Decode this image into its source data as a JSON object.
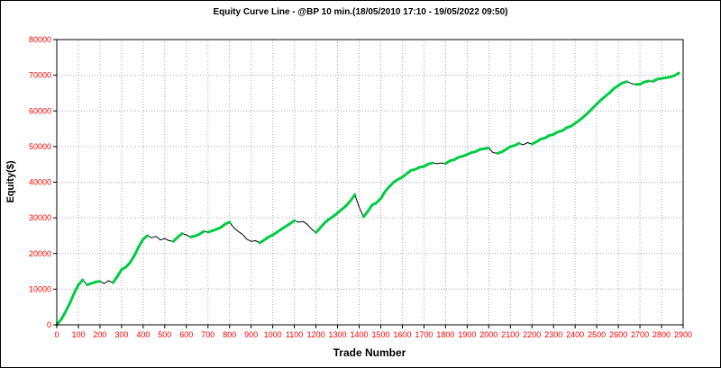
{
  "chart": {
    "title": "Equity Curve Line - @BP 10 min.(18/05/2010 17:10 - 19/05/2022 09:50)"
  },
  "chart_data": {
    "type": "line",
    "title": "Equity Curve Line - @BP 10 min.(18/05/2010 17:10 - 19/05/2022 09:50)",
    "xlabel": "Trade Number",
    "ylabel": "Equity($)",
    "xlim": [
      0,
      2900
    ],
    "ylim": [
      0,
      80000
    ],
    "x_tick_step": 100,
    "y_tick_step": 10000,
    "grid": true,
    "legend": "none",
    "colors": {
      "line": "#000000",
      "new_high_highlight": "#00cc44",
      "tick_label": "#ff0000",
      "grid": "#aaaaaa",
      "background": "#ffffff"
    },
    "series": [
      {
        "name": "equity",
        "points": [
          [
            0,
            0
          ],
          [
            20,
            1500
          ],
          [
            40,
            3600
          ],
          [
            60,
            6000
          ],
          [
            80,
            8800
          ],
          [
            100,
            11200
          ],
          [
            120,
            12600
          ],
          [
            140,
            11200
          ],
          [
            160,
            11600
          ],
          [
            180,
            12000
          ],
          [
            200,
            12200
          ],
          [
            220,
            11600
          ],
          [
            240,
            12400
          ],
          [
            260,
            11800
          ],
          [
            280,
            13500
          ],
          [
            300,
            15500
          ],
          [
            320,
            16200
          ],
          [
            340,
            17500
          ],
          [
            360,
            19500
          ],
          [
            380,
            22000
          ],
          [
            400,
            24000
          ],
          [
            420,
            25000
          ],
          [
            440,
            24400
          ],
          [
            460,
            24800
          ],
          [
            480,
            23800
          ],
          [
            500,
            24200
          ],
          [
            520,
            23600
          ],
          [
            540,
            23400
          ],
          [
            560,
            24600
          ],
          [
            580,
            25600
          ],
          [
            600,
            25200
          ],
          [
            620,
            24600
          ],
          [
            640,
            24900
          ],
          [
            660,
            25400
          ],
          [
            680,
            26200
          ],
          [
            700,
            26000
          ],
          [
            720,
            26400
          ],
          [
            740,
            26800
          ],
          [
            760,
            27300
          ],
          [
            780,
            28300
          ],
          [
            800,
            28800
          ],
          [
            820,
            27200
          ],
          [
            840,
            26200
          ],
          [
            860,
            25400
          ],
          [
            880,
            24000
          ],
          [
            900,
            23400
          ],
          [
            920,
            23600
          ],
          [
            940,
            23000
          ],
          [
            960,
            23800
          ],
          [
            980,
            24600
          ],
          [
            1000,
            25200
          ],
          [
            1020,
            26000
          ],
          [
            1040,
            26800
          ],
          [
            1060,
            27600
          ],
          [
            1080,
            28400
          ],
          [
            1100,
            29200
          ],
          [
            1120,
            28800
          ],
          [
            1140,
            29000
          ],
          [
            1160,
            28200
          ],
          [
            1180,
            26800
          ],
          [
            1200,
            25900
          ],
          [
            1220,
            27200
          ],
          [
            1240,
            28600
          ],
          [
            1260,
            29600
          ],
          [
            1280,
            30400
          ],
          [
            1300,
            31400
          ],
          [
            1320,
            32400
          ],
          [
            1340,
            33400
          ],
          [
            1360,
            34800
          ],
          [
            1380,
            36500
          ],
          [
            1400,
            33000
          ],
          [
            1420,
            30300
          ],
          [
            1440,
            31800
          ],
          [
            1460,
            33600
          ],
          [
            1480,
            34200
          ],
          [
            1500,
            35400
          ],
          [
            1520,
            37400
          ],
          [
            1540,
            38800
          ],
          [
            1560,
            40000
          ],
          [
            1580,
            40800
          ],
          [
            1600,
            41400
          ],
          [
            1620,
            42400
          ],
          [
            1640,
            43300
          ],
          [
            1660,
            43600
          ],
          [
            1680,
            44200
          ],
          [
            1700,
            44400
          ],
          [
            1720,
            45100
          ],
          [
            1740,
            45400
          ],
          [
            1760,
            45200
          ],
          [
            1780,
            45400
          ],
          [
            1800,
            45200
          ],
          [
            1820,
            46000
          ],
          [
            1840,
            46300
          ],
          [
            1860,
            47000
          ],
          [
            1880,
            47300
          ],
          [
            1900,
            47800
          ],
          [
            1920,
            48300
          ],
          [
            1940,
            48600
          ],
          [
            1960,
            49200
          ],
          [
            1980,
            49400
          ],
          [
            2000,
            49600
          ],
          [
            2020,
            48300
          ],
          [
            2040,
            48100
          ],
          [
            2060,
            48500
          ],
          [
            2080,
            49200
          ],
          [
            2100,
            50000
          ],
          [
            2120,
            50300
          ],
          [
            2140,
            50900
          ],
          [
            2160,
            50500
          ],
          [
            2180,
            51100
          ],
          [
            2200,
            50700
          ],
          [
            2220,
            51300
          ],
          [
            2240,
            52100
          ],
          [
            2260,
            52400
          ],
          [
            2280,
            53100
          ],
          [
            2300,
            53400
          ],
          [
            2320,
            54100
          ],
          [
            2340,
            54400
          ],
          [
            2360,
            55300
          ],
          [
            2380,
            55700
          ],
          [
            2400,
            56500
          ],
          [
            2420,
            57400
          ],
          [
            2440,
            58400
          ],
          [
            2460,
            59500
          ],
          [
            2480,
            60700
          ],
          [
            2500,
            61900
          ],
          [
            2520,
            63100
          ],
          [
            2540,
            64100
          ],
          [
            2560,
            65100
          ],
          [
            2580,
            66300
          ],
          [
            2600,
            67100
          ],
          [
            2620,
            67900
          ],
          [
            2640,
            68200
          ],
          [
            2660,
            67700
          ],
          [
            2680,
            67400
          ],
          [
            2700,
            67500
          ],
          [
            2720,
            68100
          ],
          [
            2740,
            68400
          ],
          [
            2760,
            68300
          ],
          [
            2780,
            68900
          ],
          [
            2800,
            69100
          ],
          [
            2820,
            69300
          ],
          [
            2840,
            69500
          ],
          [
            2860,
            69900
          ],
          [
            2880,
            70600
          ]
        ]
      }
    ]
  }
}
